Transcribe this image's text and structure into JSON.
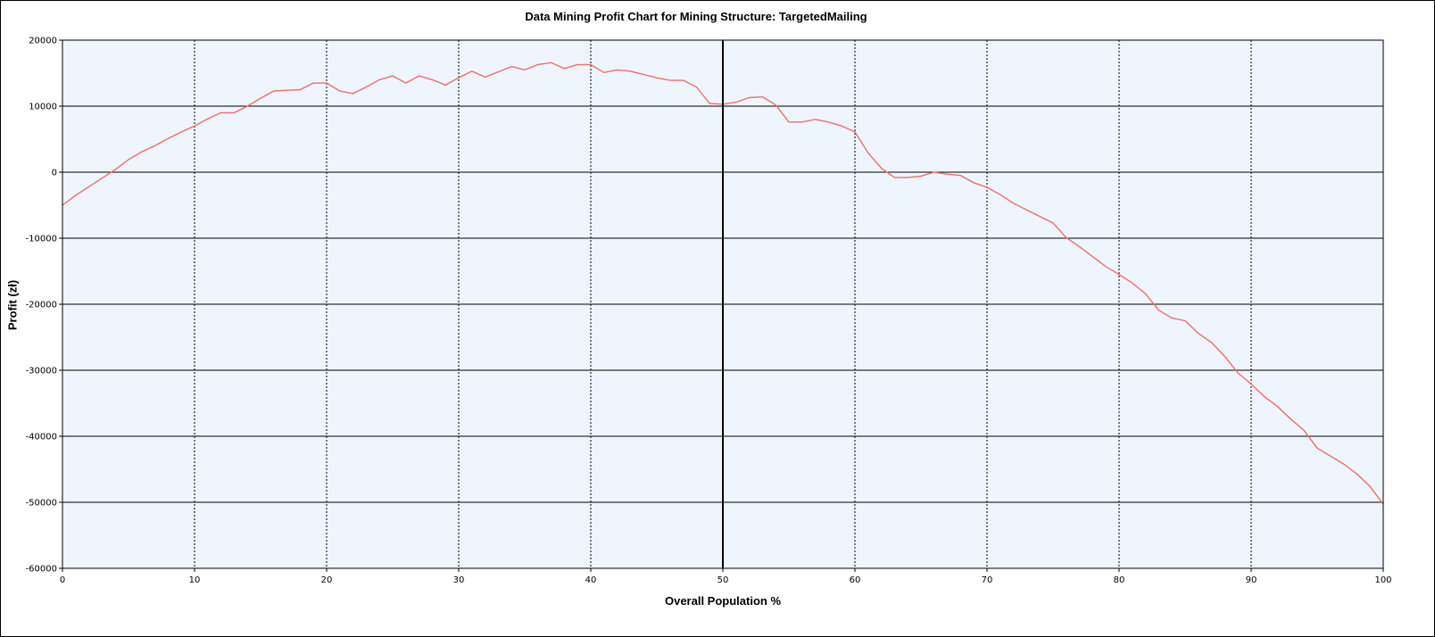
{
  "chart_data": {
    "type": "line",
    "title": "Data Mining Profit Chart for Mining Structure: TargetedMailing",
    "xlabel": "Overall Population %",
    "ylabel": "Profit (zł)",
    "xlim": [
      0,
      100
    ],
    "ylim": [
      -60000,
      20000
    ],
    "x_ticks": [
      0,
      10,
      20,
      30,
      40,
      50,
      60,
      70,
      80,
      90,
      100
    ],
    "y_ticks": [
      -60000,
      -50000,
      -40000,
      -30000,
      -20000,
      -10000,
      0,
      10000,
      20000
    ],
    "grid": true,
    "plot_background": "#eef5fd",
    "line_color": "#f06c6c",
    "series": [
      {
        "x": [
          0,
          1,
          2,
          3,
          4,
          5,
          6,
          7,
          8,
          9,
          10,
          11,
          12,
          13,
          14,
          15,
          16,
          17,
          18,
          19,
          20,
          21,
          22,
          23,
          24,
          25,
          26,
          27,
          28,
          29,
          30,
          31,
          32,
          33,
          34,
          35,
          36,
          37,
          38,
          39,
          40,
          41,
          42,
          43,
          44,
          45,
          46,
          47,
          48,
          49,
          50,
          51,
          52,
          53,
          54,
          55,
          56,
          57,
          58,
          59,
          60,
          61,
          62,
          63,
          64,
          65,
          66,
          67,
          68,
          69,
          70,
          71,
          72,
          73,
          74,
          75,
          76,
          77,
          78,
          79,
          80,
          81,
          82,
          83,
          84,
          85,
          86,
          87,
          88,
          89,
          90,
          91,
          92,
          93,
          94,
          95,
          96,
          97,
          98,
          99,
          100
        ],
        "y": [
          -5000,
          -3500,
          -2200,
          -900,
          400,
          1900,
          3100,
          4000,
          5100,
          6100,
          7000,
          8100,
          9000,
          9000,
          10000,
          11200,
          12300,
          12400,
          12500,
          13500,
          13500,
          12300,
          11900,
          12900,
          14000,
          14600,
          13500,
          14600,
          14000,
          13200,
          14300,
          15300,
          14400,
          15200,
          16000,
          15500,
          16300,
          16600,
          15700,
          16300,
          16300,
          15100,
          15500,
          15300,
          14800,
          14300,
          13900,
          13900,
          12900,
          10400,
          10300,
          10600,
          11300,
          11400,
          10200,
          7600,
          7600,
          8000,
          7600,
          7000,
          6100,
          2900,
          600,
          -800,
          -800,
          -600,
          0,
          -300,
          -500,
          -1600,
          -2300,
          -3400,
          -4700,
          -5700,
          -6700,
          -7700,
          -9900,
          -11300,
          -12800,
          -14300,
          -15500,
          -16800,
          -18400,
          -20900,
          -22100,
          -22500,
          -24400,
          -25800,
          -27900,
          -30400,
          -32100,
          -34000,
          -35500,
          -37400,
          -39100,
          -41800,
          -43000,
          -44200,
          -45700,
          -47600,
          -50300
        ]
      }
    ]
  }
}
